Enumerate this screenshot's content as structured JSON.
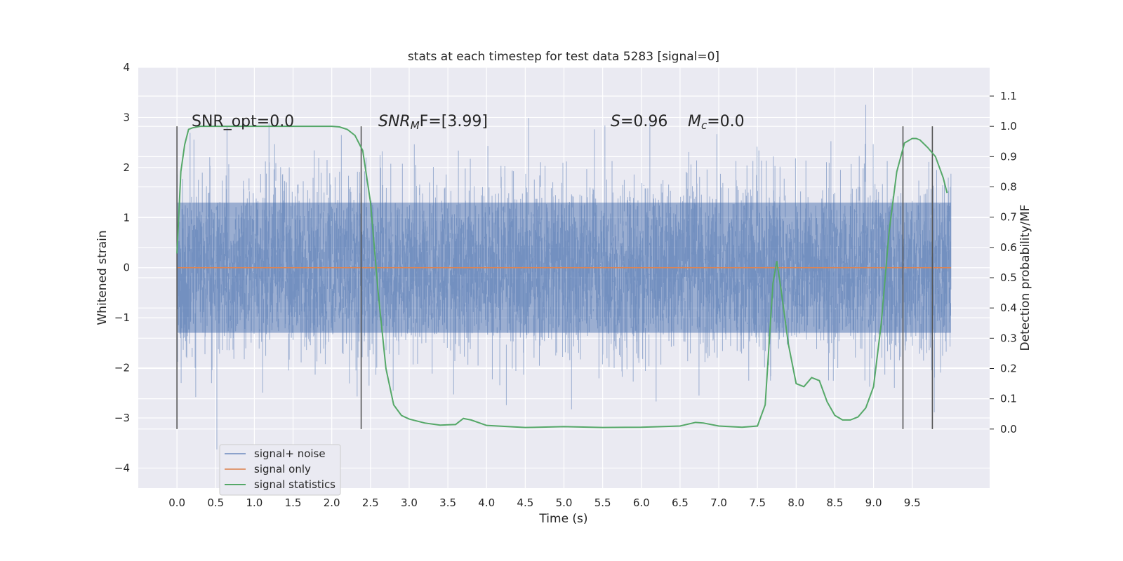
{
  "chart_data": {
    "type": "line",
    "title": "stats at each timestep for test data 5283 [signal=0]",
    "xlabel": "Time (s)",
    "ylabel": "Whitened strain",
    "y2label": "Detection probability/MF",
    "xlim": [
      -0.5,
      10.5
    ],
    "ylim": [
      -4.4,
      4.0
    ],
    "y2lim": [
      -0.195,
      1.195
    ],
    "x_ticks": [
      "0.0",
      "0.5",
      "1.0",
      "1.5",
      "2.0",
      "2.5",
      "3.0",
      "3.5",
      "4.0",
      "4.5",
      "5.0",
      "5.5",
      "6.0",
      "6.5",
      "7.0",
      "7.5",
      "8.0",
      "8.5",
      "9.0",
      "9.5"
    ],
    "y_ticks": [
      "−4",
      "−3",
      "−2",
      "−1",
      "0",
      "1",
      "2",
      "3",
      "4"
    ],
    "y2_ticks": [
      "0.0",
      "0.1",
      "0.2",
      "0.3",
      "0.4",
      "0.5",
      "0.6",
      "0.7",
      "0.8",
      "0.9",
      "1.0",
      "1.1"
    ],
    "grid": true,
    "legend_position": "lower-left",
    "colors": {
      "background": "#eaeaf2",
      "noise": "#4c72b0",
      "signal": "#dd8452",
      "stats": "#55a868",
      "marker": "#555555"
    },
    "annotations": {
      "snr_opt": "SNR_opt=0.0",
      "snr_mf_sym": "SNR",
      "snr_mf_sub": "M",
      "snr_mf_rest": "F=[3.99]",
      "s_sym": "S",
      "s_rest": "=0.96",
      "mc_sym": "M",
      "mc_sub": "c",
      "mc_rest": "=0.0"
    },
    "markers_x": [
      0.0,
      2.38,
      9.38,
      9.76
    ],
    "series": [
      {
        "name": "signal+ noise",
        "style": "noise-band",
        "std": 0.85,
        "x_start": 0.0,
        "x_end": 10.0
      },
      {
        "name": "signal only",
        "x": [
          0.0,
          10.0
        ],
        "y": [
          0.0,
          0.0
        ]
      },
      {
        "name": "signal statistics",
        "x": [
          0.0,
          0.05,
          0.1,
          0.15,
          0.2,
          0.3,
          0.5,
          1.0,
          1.5,
          2.0,
          2.1,
          2.2,
          2.3,
          2.4,
          2.5,
          2.6,
          2.7,
          2.8,
          2.9,
          3.0,
          3.2,
          3.4,
          3.6,
          3.7,
          3.8,
          4.0,
          4.5,
          5.0,
          5.5,
          6.0,
          6.5,
          6.7,
          6.8,
          7.0,
          7.3,
          7.5,
          7.6,
          7.7,
          7.75,
          7.8,
          7.9,
          8.0,
          8.1,
          8.2,
          8.3,
          8.4,
          8.5,
          8.6,
          8.7,
          8.8,
          8.9,
          9.0,
          9.1,
          9.2,
          9.3,
          9.4,
          9.5,
          9.55,
          9.6,
          9.7,
          9.8,
          9.9,
          9.95
        ],
        "y": [
          0.58,
          0.85,
          0.94,
          0.99,
          0.995,
          1.0,
          1.0,
          1.0,
          1.0,
          1.0,
          0.998,
          0.99,
          0.97,
          0.92,
          0.75,
          0.45,
          0.2,
          0.08,
          0.045,
          0.033,
          0.02,
          0.013,
          0.015,
          0.035,
          0.03,
          0.012,
          0.005,
          0.008,
          0.005,
          0.006,
          0.01,
          0.022,
          0.02,
          0.01,
          0.006,
          0.01,
          0.08,
          0.48,
          0.555,
          0.47,
          0.28,
          0.15,
          0.14,
          0.17,
          0.16,
          0.09,
          0.045,
          0.03,
          0.03,
          0.04,
          0.07,
          0.14,
          0.35,
          0.65,
          0.85,
          0.945,
          0.96,
          0.96,
          0.955,
          0.93,
          0.9,
          0.83,
          0.78
        ]
      }
    ]
  }
}
